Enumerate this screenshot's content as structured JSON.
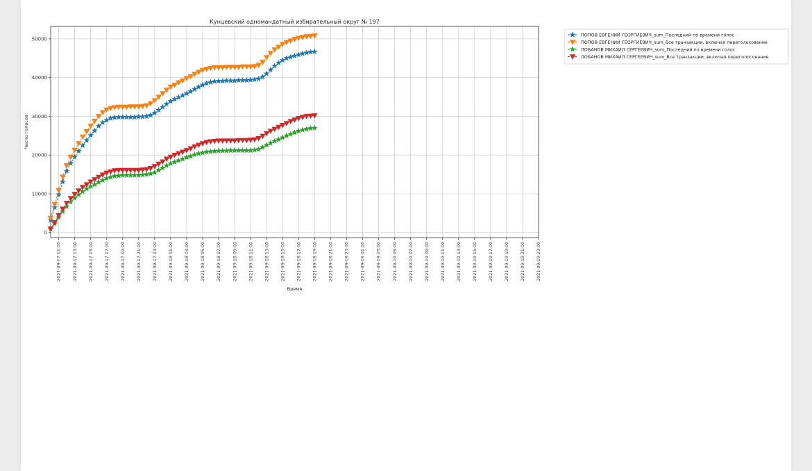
{
  "chart_data": {
    "type": "line",
    "title": "Кунцевский одномандатный избирательный округ № 197",
    "xlabel": "Время",
    "ylabel": "Число голосов",
    "ylim": [
      -1300,
      53200
    ],
    "yticks": [
      0,
      10000,
      20000,
      30000,
      40000,
      50000
    ],
    "grid": true,
    "legend": "outside-top-right",
    "x_tick_labels": [
      "2021-09-17 11:00",
      "2021-09-17 13:00",
      "2021-09-17 15:00",
      "2021-09-17 17:00",
      "2021-09-17 19:00",
      "2021-09-17 21:00",
      "2021-09-17 23:00",
      "2021-09-18 01:00",
      "2021-09-18 03:00",
      "2021-09-18 05:00",
      "2021-09-18 07:00",
      "2021-09-18 09:00",
      "2021-09-18 11:00",
      "2021-09-18 13:00",
      "2021-09-18 15:00",
      "2021-09-18 17:00",
      "2021-09-18 19:00",
      "2021-09-18 21:00",
      "2021-09-18 23:00",
      "2021-09-19 01:00",
      "2021-09-19 03:00",
      "2021-09-19 05:00",
      "2021-09-19 07:00",
      "2021-09-19 09:00",
      "2021-09-19 11:00",
      "2021-09-19 13:00",
      "2021-09-19 15:00",
      "2021-09-19 17:00",
      "2021-09-19 19:00",
      "2021-09-19 21:00",
      "2021-09-19 23:00"
    ],
    "x_start": "2021-09-17 10:00",
    "x_end": "2021-09-19 23:00",
    "time_step_minutes": 30,
    "series": [
      {
        "name": "ПОПОВ ЕВГЕНИЙ ГЕОРГИЕВИЧ_sum_Последний по времени голос",
        "marker": "star",
        "color": "#1f77b4",
        "values": [
          3200,
          6500,
          9800,
          13100,
          15900,
          17900,
          19500,
          21000,
          22500,
          23800,
          25100,
          26300,
          27500,
          28400,
          29000,
          29500,
          29700,
          29800,
          29800,
          29800,
          29800,
          29800,
          29900,
          29900,
          30000,
          30300,
          30900,
          31600,
          32400,
          33200,
          33900,
          34400,
          34900,
          35400,
          35900,
          36400,
          37000,
          37600,
          38100,
          38500,
          38800,
          39000,
          39100,
          39100,
          39200,
          39200,
          39200,
          39300,
          39300,
          39300,
          39400,
          39500,
          39700,
          40200,
          41000,
          42000,
          43000,
          43800,
          44500,
          45000,
          45300,
          45600,
          45900,
          46200,
          46400,
          46600,
          46700
        ]
      },
      {
        "name": "ПОПОВ ЕВГЕНИЙ ГЕОРГИЕВИЧ_sum_Все транзакции, включая переголосование",
        "marker": "triangle_down",
        "color": "#ff7f0e",
        "values": [
          3700,
          7300,
          10900,
          14400,
          17300,
          19500,
          21300,
          23000,
          24700,
          26100,
          27500,
          28800,
          30000,
          31000,
          31700,
          32100,
          32300,
          32400,
          32400,
          32400,
          32500,
          32500,
          32500,
          32600,
          32800,
          33300,
          34100,
          35000,
          35900,
          36800,
          37600,
          38100,
          38700,
          39200,
          39800,
          40300,
          40900,
          41400,
          41900,
          42200,
          42400,
          42600,
          42600,
          42600,
          42700,
          42700,
          42700,
          42700,
          42800,
          42800,
          42800,
          42900,
          43200,
          44000,
          45200,
          46300,
          47200,
          47900,
          48600,
          49100,
          49500,
          49900,
          50200,
          50400,
          50600,
          50700,
          50800
        ]
      },
      {
        "name": "ЛОБАНОВ МИХАИЛ СЕРГЕЕВИЧ_sum_Последний по времени голос",
        "marker": "star",
        "color": "#2ca02c",
        "values": [
          900,
          2300,
          3900,
          5400,
          6700,
          7900,
          8900,
          9800,
          10600,
          11300,
          11900,
          12400,
          13000,
          13500,
          14000,
          14300,
          14600,
          14700,
          14800,
          14800,
          14800,
          14800,
          14800,
          14900,
          15000,
          15200,
          15500,
          16100,
          16700,
          17300,
          17800,
          18200,
          18600,
          19000,
          19400,
          19700,
          20100,
          20400,
          20600,
          20800,
          20900,
          21000,
          21100,
          21100,
          21100,
          21200,
          21200,
          21200,
          21200,
          21200,
          21200,
          21300,
          21500,
          22000,
          22600,
          23100,
          23600,
          24000,
          24500,
          25000,
          25400,
          25800,
          26200,
          26500,
          26700,
          26900,
          27000
        ]
      },
      {
        "name": "ЛОБАНОВ МИХАИЛ СЕРГЕЕВИЧ_sum_Все транзакции, включая переголосование",
        "marker": "triangle_down",
        "color": "#d62728",
        "values": [
          1000,
          2600,
          4400,
          6100,
          7600,
          8800,
          9900,
          10800,
          11700,
          12400,
          13100,
          13700,
          14300,
          14900,
          15400,
          15700,
          16000,
          16100,
          16100,
          16100,
          16100,
          16100,
          16100,
          16200,
          16300,
          16600,
          17100,
          17700,
          18300,
          19000,
          19500,
          20000,
          20400,
          20800,
          21200,
          21700,
          22200,
          22600,
          23000,
          23300,
          23500,
          23600,
          23700,
          23700,
          23700,
          23700,
          23700,
          23800,
          23800,
          23800,
          23900,
          24000,
          24300,
          24900,
          25600,
          26200,
          26700,
          27200,
          27700,
          28200,
          28700,
          29100,
          29500,
          29800,
          30000,
          30100,
          30200
        ]
      }
    ]
  }
}
